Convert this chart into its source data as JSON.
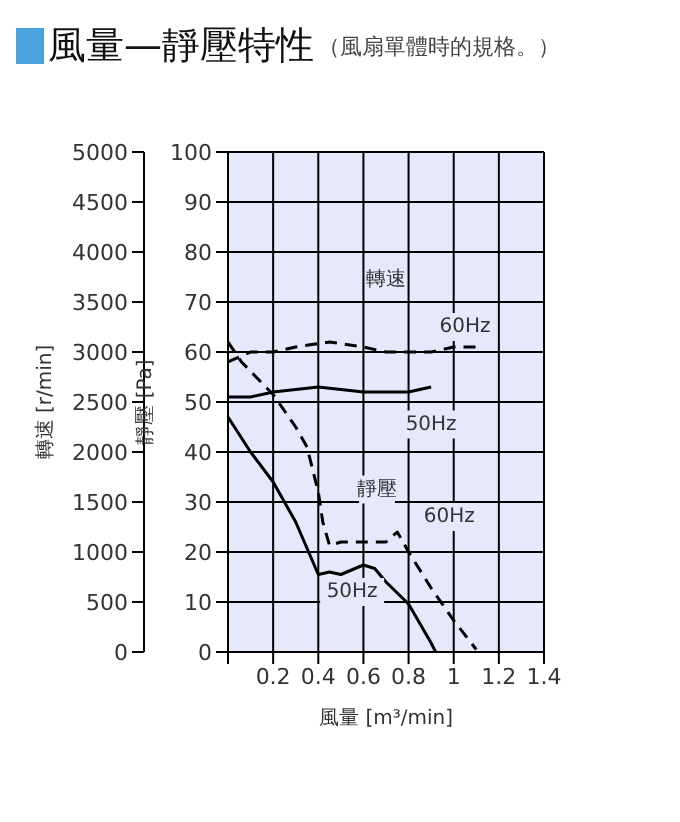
{
  "chart_data": {
    "type": "line",
    "title": "風量—靜壓特性",
    "subtitle": "（風扇單體時的規格。）",
    "xlabel": "風量 [m³/min]",
    "ylabel": "靜壓 [Pa]",
    "y2label": "轉速 [r/min]",
    "xlim": [
      0,
      1.4
    ],
    "xticks": [
      {
        "value": 0,
        "label": null
      },
      0.2,
      0.4,
      0.6,
      0.8,
      1.0,
      1.2,
      1.4
    ],
    "ylim": [
      0,
      100
    ],
    "yticks": [
      0,
      10,
      20,
      30,
      40,
      50,
      60,
      70,
      80,
      90,
      100
    ],
    "y2lim": [
      0,
      5000
    ],
    "y2ticks": [
      0,
      500,
      1000,
      1500,
      2000,
      2500,
      3000,
      3500,
      4000,
      4500,
      5000
    ],
    "grid": true,
    "legend": false,
    "marker": "none",
    "series": [
      {
        "color": "#000000",
        "axis": "y2",
        "line_style": "dashed",
        "x": [
          0,
          0.1,
          0.2,
          0.3,
          0.45,
          0.6,
          0.7,
          0.8,
          0.9,
          1.0,
          1.1
        ],
        "values": [
          2900,
          3000,
          3000,
          3050,
          3100,
          3050,
          3000,
          3000,
          3000,
          3050,
          3050
        ]
      },
      {
        "color": "#000000",
        "axis": "y2",
        "line_style": "solid",
        "x": [
          0,
          0.1,
          0.2,
          0.4,
          0.6,
          0.7,
          0.8,
          0.9
        ],
        "values": [
          2550,
          2550,
          2600,
          2650,
          2600,
          2600,
          2600,
          2650
        ]
      },
      {
        "color": "#000000",
        "line_style": "dashed",
        "x": [
          0,
          0.06,
          0.2,
          0.3,
          0.35,
          0.4,
          0.42,
          0.45,
          0.5,
          0.6,
          0.7,
          0.75,
          0.8,
          0.9,
          1.0,
          1.1
        ],
        "values": [
          62,
          58,
          51.5,
          45,
          41,
          32,
          26,
          21.3,
          22,
          22,
          22,
          24,
          20,
          12.8,
          6.3,
          0.5
        ]
      },
      {
        "color": "#000000",
        "line_style": "solid",
        "x": [
          0,
          0.1,
          0.2,
          0.3,
          0.4,
          0.45,
          0.5,
          0.6,
          0.65,
          0.7,
          0.8,
          0.9,
          0.92
        ],
        "values": [
          47,
          40,
          34,
          26,
          15.5,
          16,
          15.5,
          17.4,
          16.7,
          14,
          9.6,
          1.8,
          0
        ]
      }
    ],
    "annotations": [
      "轉速",
      "60Hz",
      "50Hz",
      "靜壓",
      "60Hz",
      "50Hz"
    ]
  }
}
